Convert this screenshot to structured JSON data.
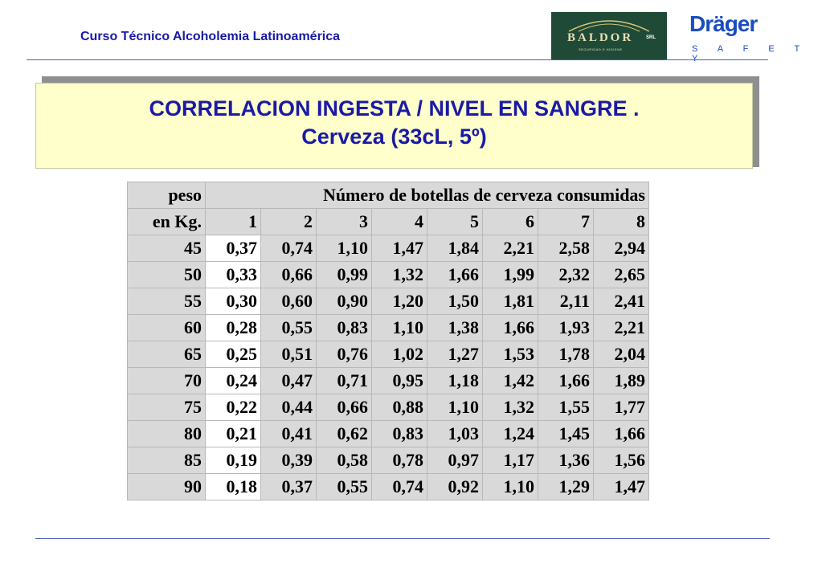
{
  "header": {
    "course_title": "Curso Técnico Alcoholemia Latinoamérica"
  },
  "logos": {
    "baldor": {
      "name": "BALDOR",
      "suffix": "SRL",
      "tagline": "SEGURIDAD E HIGIENE"
    },
    "drager": {
      "name": "Dräger",
      "tagline": "S A F E T Y"
    }
  },
  "slide": {
    "title_line1": "CORRELACION INGESTA / NIVEL EN SANGRE .",
    "title_line2": "Cerveza (33cL, 5º)"
  },
  "table": {
    "row_header_label1": "peso",
    "row_header_label2": "en Kg.",
    "group_heading": "Número de botellas de cerveza consumidas",
    "columns": [
      "1",
      "2",
      "3",
      "4",
      "5",
      "6",
      "7",
      "8"
    ],
    "rows": [
      {
        "peso": "45",
        "values": [
          "0,37",
          "0,74",
          "1,10",
          "1,47",
          "1,84",
          "2,21",
          "2,58",
          "2,94"
        ]
      },
      {
        "peso": "50",
        "values": [
          "0,33",
          "0,66",
          "0,99",
          "1,32",
          "1,66",
          "1,99",
          "2,32",
          "2,65"
        ]
      },
      {
        "peso": "55",
        "values": [
          "0,30",
          "0,60",
          "0,90",
          "1,20",
          "1,50",
          "1,81",
          "2,11",
          "2,41"
        ]
      },
      {
        "peso": "60",
        "values": [
          "0,28",
          "0,55",
          "0,83",
          "1,10",
          "1,38",
          "1,66",
          "1,93",
          "2,21"
        ]
      },
      {
        "peso": "65",
        "values": [
          "0,25",
          "0,51",
          "0,76",
          "1,02",
          "1,27",
          "1,53",
          "1,78",
          "2,04"
        ]
      },
      {
        "peso": "70",
        "values": [
          "0,24",
          "0,47",
          "0,71",
          "0,95",
          "1,18",
          "1,42",
          "1,66",
          "1,89"
        ]
      },
      {
        "peso": "75",
        "values": [
          "0,22",
          "0,44",
          "0,66",
          "0,88",
          "1,10",
          "1,32",
          "1,55",
          "1,77"
        ]
      },
      {
        "peso": "80",
        "values": [
          "0,21",
          "0,41",
          "0,62",
          "0,83",
          "1,03",
          "1,24",
          "1,45",
          "1,66"
        ]
      },
      {
        "peso": "85",
        "values": [
          "0,19",
          "0,39",
          "0,58",
          "0,78",
          "0,97",
          "1,17",
          "1,36",
          "1,56"
        ]
      },
      {
        "peso": "90",
        "values": [
          "0,18",
          "0,37",
          "0,55",
          "0,74",
          "0,92",
          "1,10",
          "1,29",
          "1,47"
        ]
      }
    ]
  },
  "colors": {
    "title_text": "#1a1aa6",
    "title_box_bg": "#ffffcc",
    "table_gray": "#d9d9d9",
    "rule_line": "#4a5bc8",
    "baldor_bg": "#1f4a38",
    "drager_blue": "#1a4dbe"
  }
}
